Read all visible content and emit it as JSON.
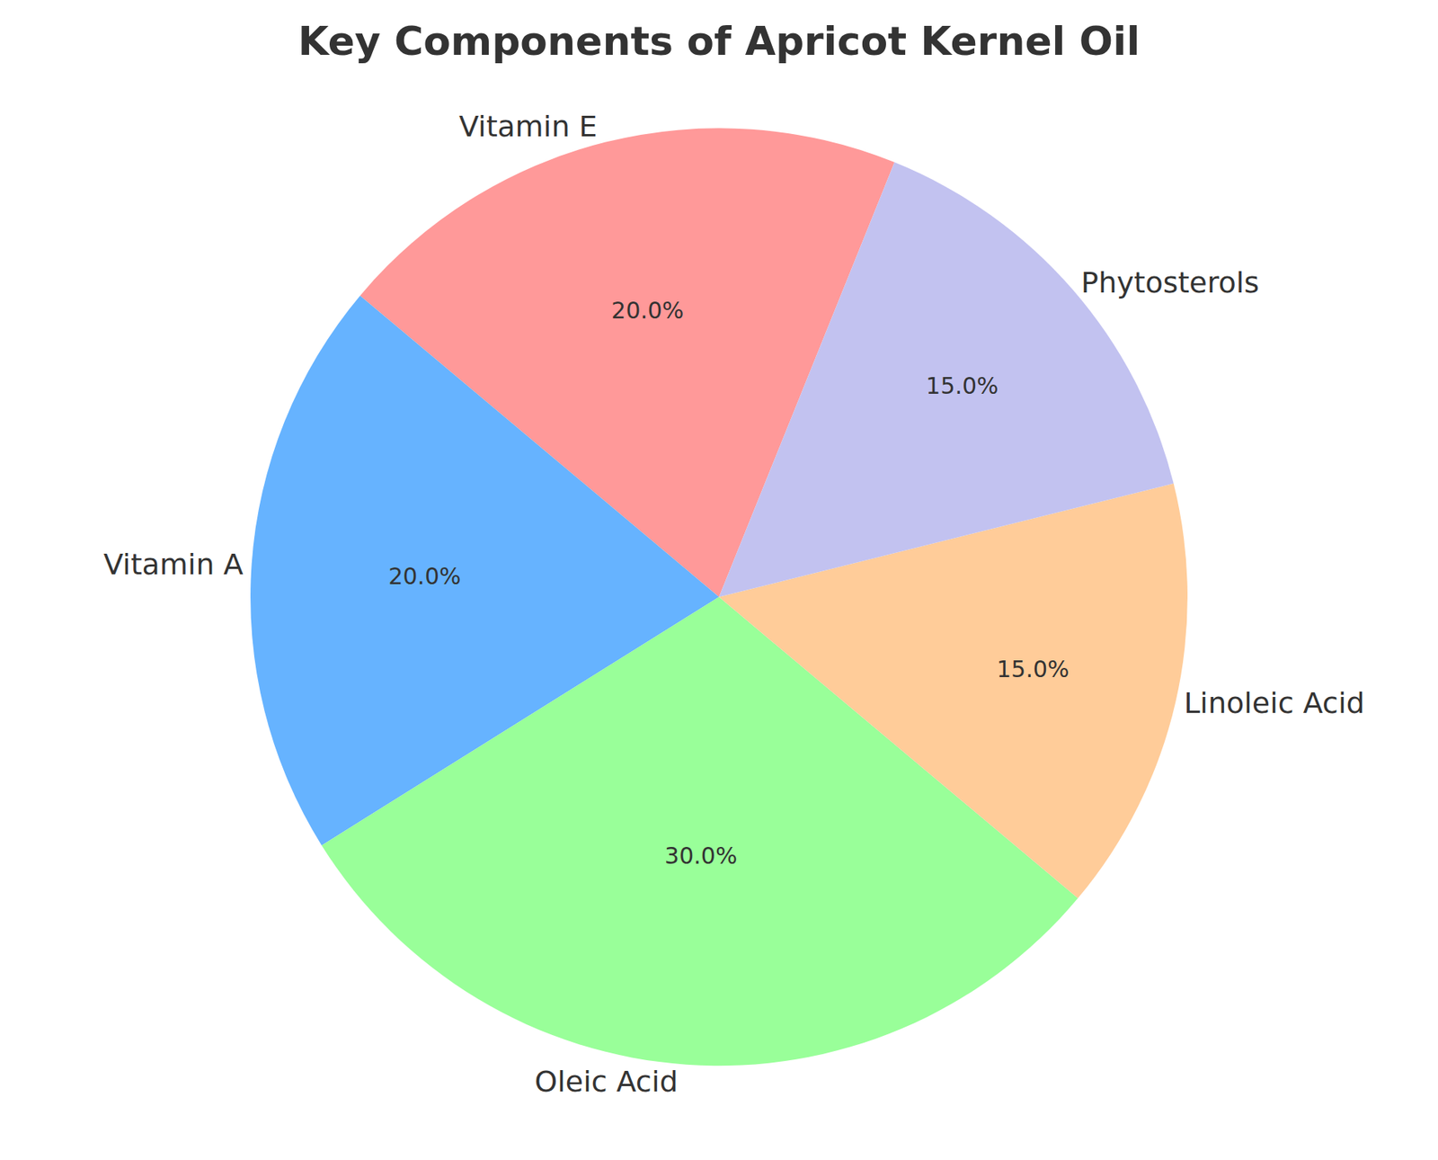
{
  "chart_data": {
    "type": "pie",
    "title": "Key Components of Apricot Kernel Oil",
    "categories": [
      "Vitamin E",
      "Vitamin A",
      "Oleic Acid",
      "Linoleic Acid",
      "Phytosterols"
    ],
    "values": [
      20,
      20,
      30,
      15,
      15
    ],
    "value_labels": [
      "20.0%",
      "20.0%",
      "30.0%",
      "15.0%",
      "15.0%"
    ],
    "colors": [
      "#ff9999",
      "#66b3ff",
      "#99ff99",
      "#ffcc99",
      "#c2c2f0"
    ],
    "data_labels": true
  }
}
